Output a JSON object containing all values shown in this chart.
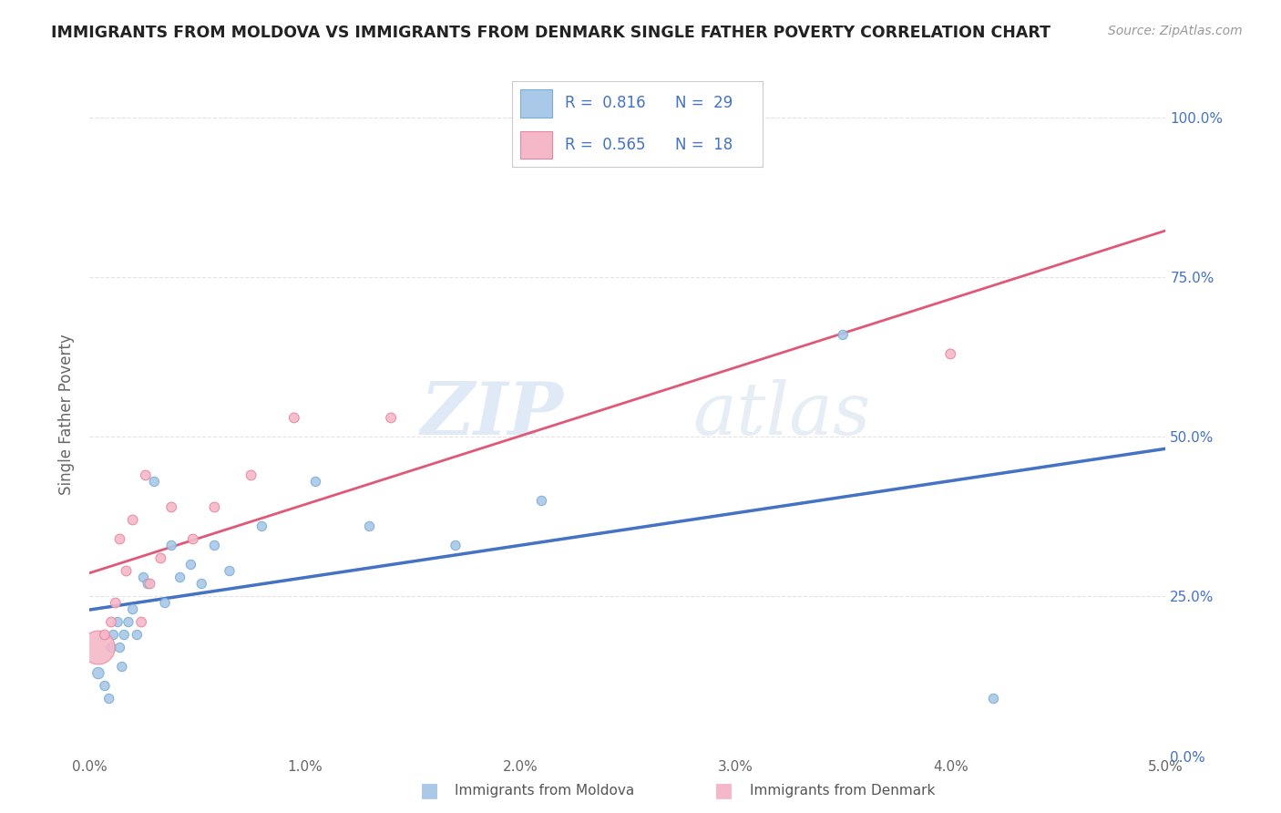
{
  "title": "IMMIGRANTS FROM MOLDOVA VS IMMIGRANTS FROM DENMARK SINGLE FATHER POVERTY CORRELATION CHART",
  "source": "Source: ZipAtlas.com",
  "ylabel": "Single Father Poverty",
  "watermark_zip": "ZIP",
  "watermark_atlas": "atlas",
  "xlim": [
    0.0,
    5.0
  ],
  "ylim": [
    0.0,
    107.0
  ],
  "yticks": [
    0.0,
    25.0,
    50.0,
    75.0,
    100.0
  ],
  "xticks": [
    0.0,
    1.0,
    2.0,
    3.0,
    4.0,
    5.0
  ],
  "xtick_labels": [
    "0.0%",
    "1.0%",
    "2.0%",
    "3.0%",
    "4.0%",
    "5.0%"
  ],
  "ytick_labels": [
    "0.0%",
    "25.0%",
    "50.0%",
    "75.0%",
    "100.0%"
  ],
  "series1_label": "Immigrants from Moldova",
  "series1_color": "#aac8e8",
  "series1_edge_color": "#7aaed6",
  "series1_R": "0.816",
  "series1_N": "29",
  "series2_label": "Immigrants from Denmark",
  "series2_color": "#f4b8c8",
  "series2_edge_color": "#e888a0",
  "series2_R": "0.565",
  "series2_N": "18",
  "line1_color": "#4472c4",
  "line2_color": "#e05878",
  "legend_color": "#4472c4",
  "moldova_x": [
    0.04,
    0.07,
    0.09,
    0.1,
    0.11,
    0.13,
    0.14,
    0.15,
    0.16,
    0.18,
    0.2,
    0.22,
    0.25,
    0.27,
    0.3,
    0.35,
    0.38,
    0.42,
    0.47,
    0.52,
    0.58,
    0.65,
    0.8,
    1.05,
    1.3,
    1.7,
    2.1,
    3.5,
    4.2
  ],
  "moldova_y": [
    13,
    11,
    9,
    17,
    19,
    21,
    17,
    14,
    19,
    21,
    23,
    19,
    28,
    27,
    43,
    24,
    33,
    28,
    30,
    27,
    33,
    29,
    36,
    43,
    36,
    33,
    40,
    66,
    9
  ],
  "moldova_sizes": [
    80,
    55,
    55,
    55,
    55,
    55,
    55,
    55,
    55,
    55,
    55,
    55,
    55,
    55,
    55,
    55,
    55,
    55,
    55,
    55,
    55,
    55,
    55,
    55,
    55,
    55,
    55,
    55,
    55
  ],
  "denmark_x": [
    0.04,
    0.07,
    0.1,
    0.12,
    0.14,
    0.17,
    0.2,
    0.24,
    0.28,
    0.33,
    0.38,
    0.48,
    0.58,
    0.75,
    0.95,
    1.4,
    4.0,
    0.26
  ],
  "denmark_y": [
    17,
    19,
    21,
    24,
    34,
    29,
    37,
    21,
    27,
    31,
    39,
    34,
    39,
    44,
    53,
    53,
    63,
    44
  ],
  "denmark_sizes": [
    700,
    60,
    60,
    60,
    60,
    60,
    60,
    60,
    60,
    60,
    60,
    60,
    60,
    60,
    60,
    60,
    60,
    60
  ],
  "background_color": "#ffffff",
  "grid_color": "#dddddd"
}
